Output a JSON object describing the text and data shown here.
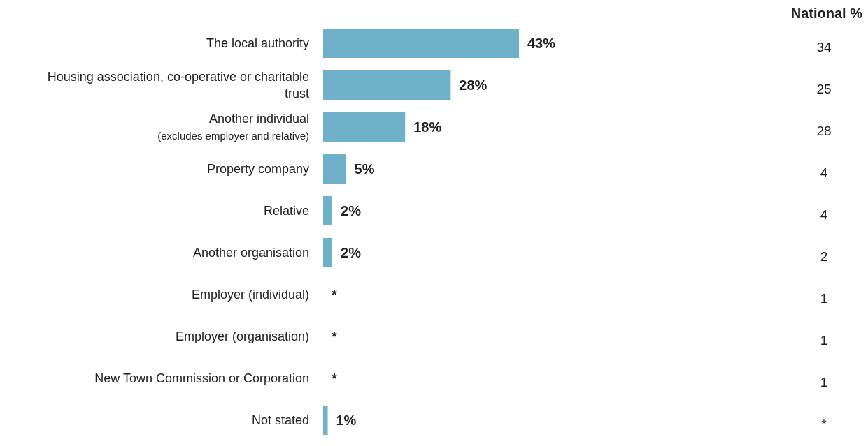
{
  "chart_data": [
    {
      "type": "bar",
      "orientation": "horizontal",
      "categories": [
        "The local authority",
        "Housing association, co-operative or charitable trust",
        "Another individual\n(excludes employer and relative)",
        "Property company",
        "Relative",
        "Another organisation",
        "Employer (individual)",
        "Employer (organisation)",
        "New Town Commission or Corporation",
        "Not stated"
      ],
      "color": "#6fb1c8",
      "values": [
        43,
        28,
        18,
        5,
        2,
        2,
        null,
        null,
        null,
        1
      ],
      "value_labels": [
        "43%",
        "28%",
        "18%",
        "5%",
        "2%",
        "2%",
        "*",
        "*",
        "*",
        "1%"
      ]
    },
    {
      "type": "other",
      "title": "National %",
      "categories": [
        null,
        null,
        null,
        null,
        null,
        null,
        null,
        null,
        null,
        null
      ],
      "values": [
        34,
        25,
        28,
        4,
        4,
        2,
        1,
        1,
        1,
        null
      ],
      "data_labels": true,
      "annotations": [
        "*"
      ]
    }
  ]
}
